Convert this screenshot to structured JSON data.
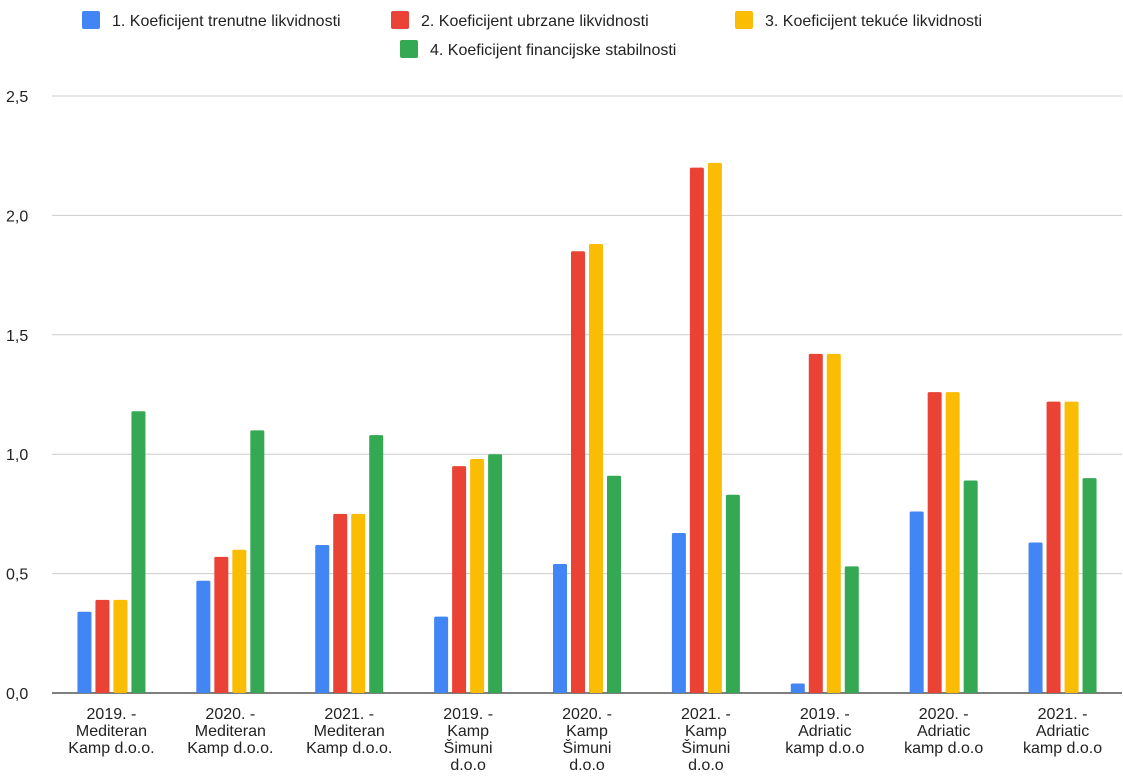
{
  "chart_data": {
    "type": "bar",
    "categories": [
      [
        "2019. -",
        "Mediteran",
        "Kamp d.o.o."
      ],
      [
        "2020. -",
        "Mediteran",
        "Kamp d.o.o."
      ],
      [
        "2021. -",
        "Mediteran",
        "Kamp d.o.o."
      ],
      [
        "2019. -",
        "Kamp",
        "Šimuni",
        "d.o.o"
      ],
      [
        "2020.  -",
        "Kamp",
        "Šimuni",
        "d.o.o"
      ],
      [
        "2021. -",
        "Kamp",
        "Šimuni",
        "d.o.o"
      ],
      [
        "2019. -",
        "Adriatic",
        "kamp d.o.o"
      ],
      [
        "2020. -",
        "Adriatic",
        "kamp d.o.o"
      ],
      [
        "2021. -",
        "Adriatic",
        "kamp d.o.o"
      ]
    ],
    "series": [
      {
        "name": "1. Koeficijent trenutne likvidnosti",
        "color": "#4285F4",
        "values": [
          0.34,
          0.47,
          0.62,
          0.32,
          0.54,
          0.67,
          0.04,
          0.76,
          0.63
        ]
      },
      {
        "name": "2. Koeficijent ubrzane likvidnosti",
        "color": "#EA4335",
        "values": [
          0.39,
          0.57,
          0.75,
          0.95,
          1.85,
          2.2,
          1.42,
          1.26,
          1.22
        ]
      },
      {
        "name": "3. Koeficijent tekuće likvidnosti",
        "color": "#FBBC04",
        "values": [
          0.39,
          0.6,
          0.75,
          0.98,
          1.88,
          2.22,
          1.42,
          1.26,
          1.22
        ]
      },
      {
        "name": "4. Koeficijent financijske stabilnosti",
        "color": "#34A853",
        "values": [
          1.18,
          1.1,
          1.08,
          1.0,
          0.91,
          0.83,
          0.53,
          0.89,
          0.9
        ]
      }
    ],
    "y_ticks": [
      "0,0",
      "0,5",
      "1,0",
      "1,5",
      "2,0",
      "2,5"
    ],
    "ylim": [
      0,
      2.5
    ],
    "grid": true,
    "legend_position": "top"
  }
}
